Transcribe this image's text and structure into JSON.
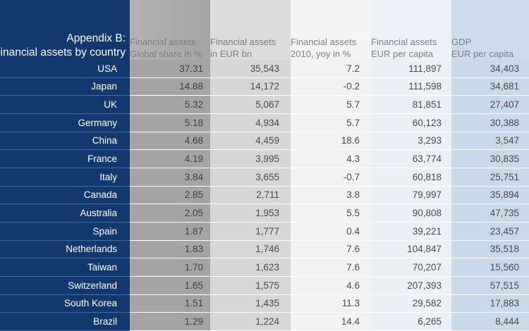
{
  "title": {
    "line1": "Appendix B:",
    "line2": "Financial assets by country"
  },
  "headers": [
    {
      "line1": "Financial assets",
      "line2": "Global share in %"
    },
    {
      "line1": "Financial assets",
      "line2": "in EUR bn"
    },
    {
      "line1": "Financial assets",
      "line2": "2010, yoy in %"
    },
    {
      "line1": "Financial assets",
      "line2": "EUR per capita"
    },
    {
      "line1": "GDP",
      "line2": "EUR per capita"
    }
  ],
  "rows": [
    {
      "country": "USA",
      "values": [
        "37.31",
        "35,543",
        "7.2",
        "111,897",
        "34,403"
      ]
    },
    {
      "country": "Japan",
      "values": [
        "14.88",
        "14,172",
        "-0.2",
        "111,598",
        "34,681"
      ]
    },
    {
      "country": "UK",
      "values": [
        "5.32",
        "5,067",
        "5.7",
        "81,851",
        "27,407"
      ]
    },
    {
      "country": "Germany",
      "values": [
        "5.18",
        "4,934",
        "5.7",
        "60,123",
        "30,388"
      ]
    },
    {
      "country": "China",
      "values": [
        "4.68",
        "4,459",
        "18.6",
        "3,293",
        "3,547"
      ]
    },
    {
      "country": "France",
      "values": [
        "4.19",
        "3,995",
        "4.3",
        "63,774",
        "30,835"
      ]
    },
    {
      "country": "Italy",
      "values": [
        "3.84",
        "3,655",
        "-0.7",
        "60,818",
        "25,751"
      ]
    },
    {
      "country": "Canada",
      "values": [
        "2.85",
        "2,711",
        "3.8",
        "79,997",
        "35,894"
      ]
    },
    {
      "country": "Australia",
      "values": [
        "2.05",
        "1,953",
        "5.5",
        "90,808",
        "47,735"
      ]
    },
    {
      "country": "Spain",
      "values": [
        "1.87",
        "1,777",
        "0.4",
        "39,221",
        "23,457"
      ]
    },
    {
      "country": "Netherlands",
      "values": [
        "1.83",
        "1,746",
        "7.6",
        "104,847",
        "35,518"
      ]
    },
    {
      "country": "Taiwan",
      "values": [
        "1.70",
        "1,623",
        "7.6",
        "70,207",
        "15,560"
      ]
    },
    {
      "country": "Switzerland",
      "values": [
        "1.65",
        "1,575",
        "4.6",
        "207,393",
        "57,515"
      ]
    },
    {
      "country": "South Korea",
      "values": [
        "1.51",
        "1,435",
        "11.3",
        "29,582",
        "17,883"
      ]
    },
    {
      "country": "Brazil",
      "values": [
        "1.29",
        "1,224",
        "14.4",
        "6,265",
        "8,444"
      ]
    }
  ]
}
